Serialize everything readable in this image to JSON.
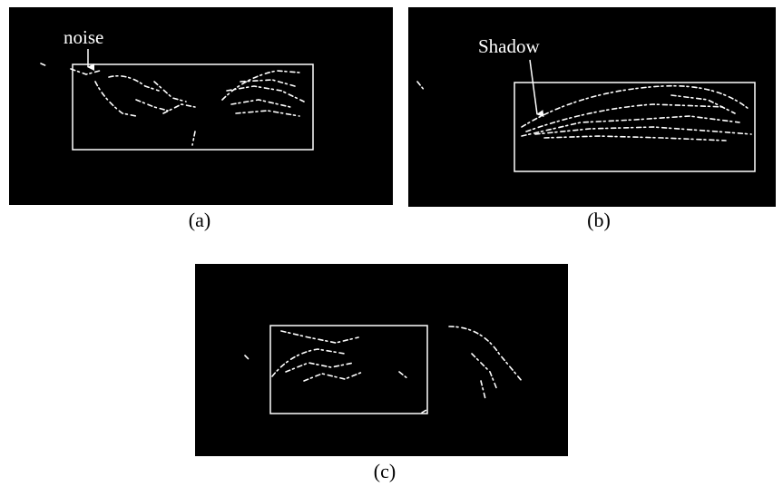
{
  "panels": [
    {
      "label": "(a)",
      "annotation": "noise"
    },
    {
      "label": "(b)",
      "annotation": "Shadow"
    },
    {
      "label": "(c)"
    }
  ]
}
